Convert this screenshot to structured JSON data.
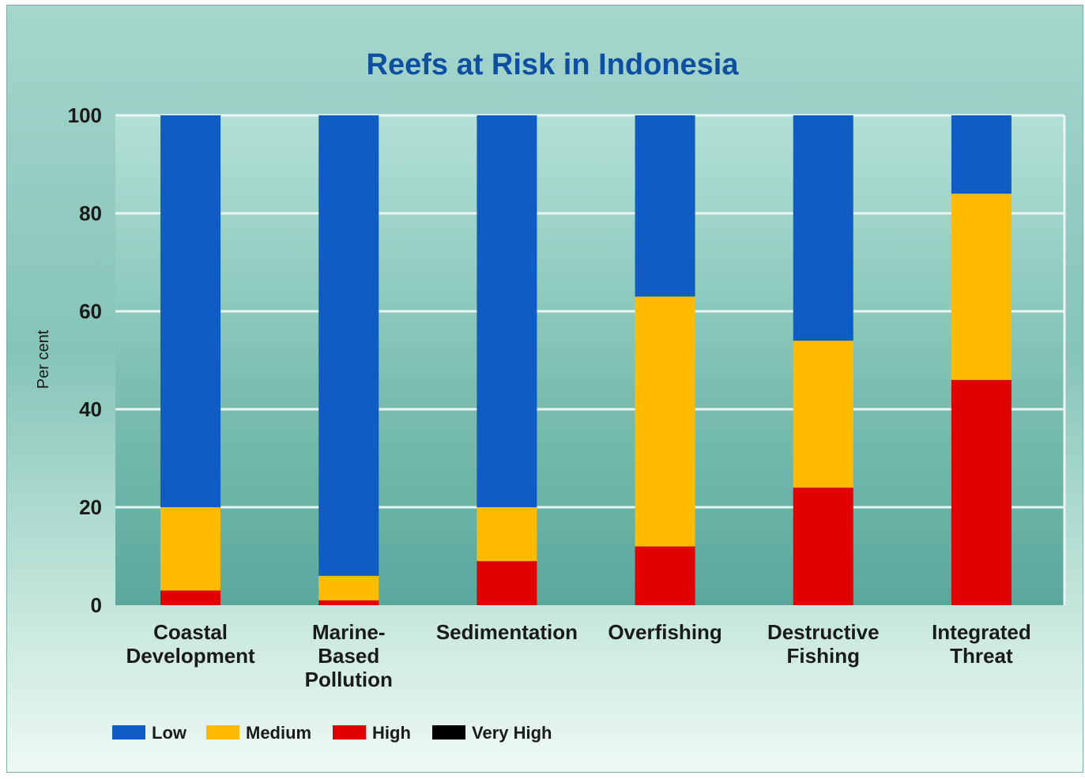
{
  "chart_data": {
    "type": "bar",
    "stacked": true,
    "title": "Reefs at Risk in Indonesia",
    "ylabel": "Per cent",
    "xlabel": "",
    "ylim": [
      0,
      100
    ],
    "yticks": [
      0,
      20,
      40,
      60,
      80,
      100
    ],
    "grid": true,
    "legend_position": "bottom-left",
    "categories": [
      [
        "Coastal",
        "Development"
      ],
      [
        "Marine-",
        "Based",
        "Pollution"
      ],
      [
        "Sedimentation"
      ],
      [
        "Overfishing"
      ],
      [
        "Destructive",
        "Fishing"
      ],
      [
        "Integrated",
        "Threat"
      ]
    ],
    "series": [
      {
        "name": "Very High",
        "color": "#000000",
        "values": [
          0,
          0,
          0,
          0,
          0,
          0
        ]
      },
      {
        "name": "High",
        "color": "#e00000",
        "values": [
          3,
          1,
          9,
          12,
          24,
          46
        ]
      },
      {
        "name": "Medium",
        "color": "#ffbb00",
        "values": [
          17,
          5,
          11,
          51,
          30,
          38
        ]
      },
      {
        "name": "Low",
        "color": "#0f5cc4",
        "values": [
          80,
          94,
          80,
          37,
          46,
          16
        ]
      }
    ],
    "legend_order": [
      "Low",
      "Medium",
      "High",
      "Very High"
    ]
  },
  "colors": {
    "title": "#0d4fa3",
    "axis_text": "#1a1a1a",
    "grid": "#e9f5f1",
    "background_top": "#9fd2c8",
    "background_bottom": "#e6f6f0"
  }
}
